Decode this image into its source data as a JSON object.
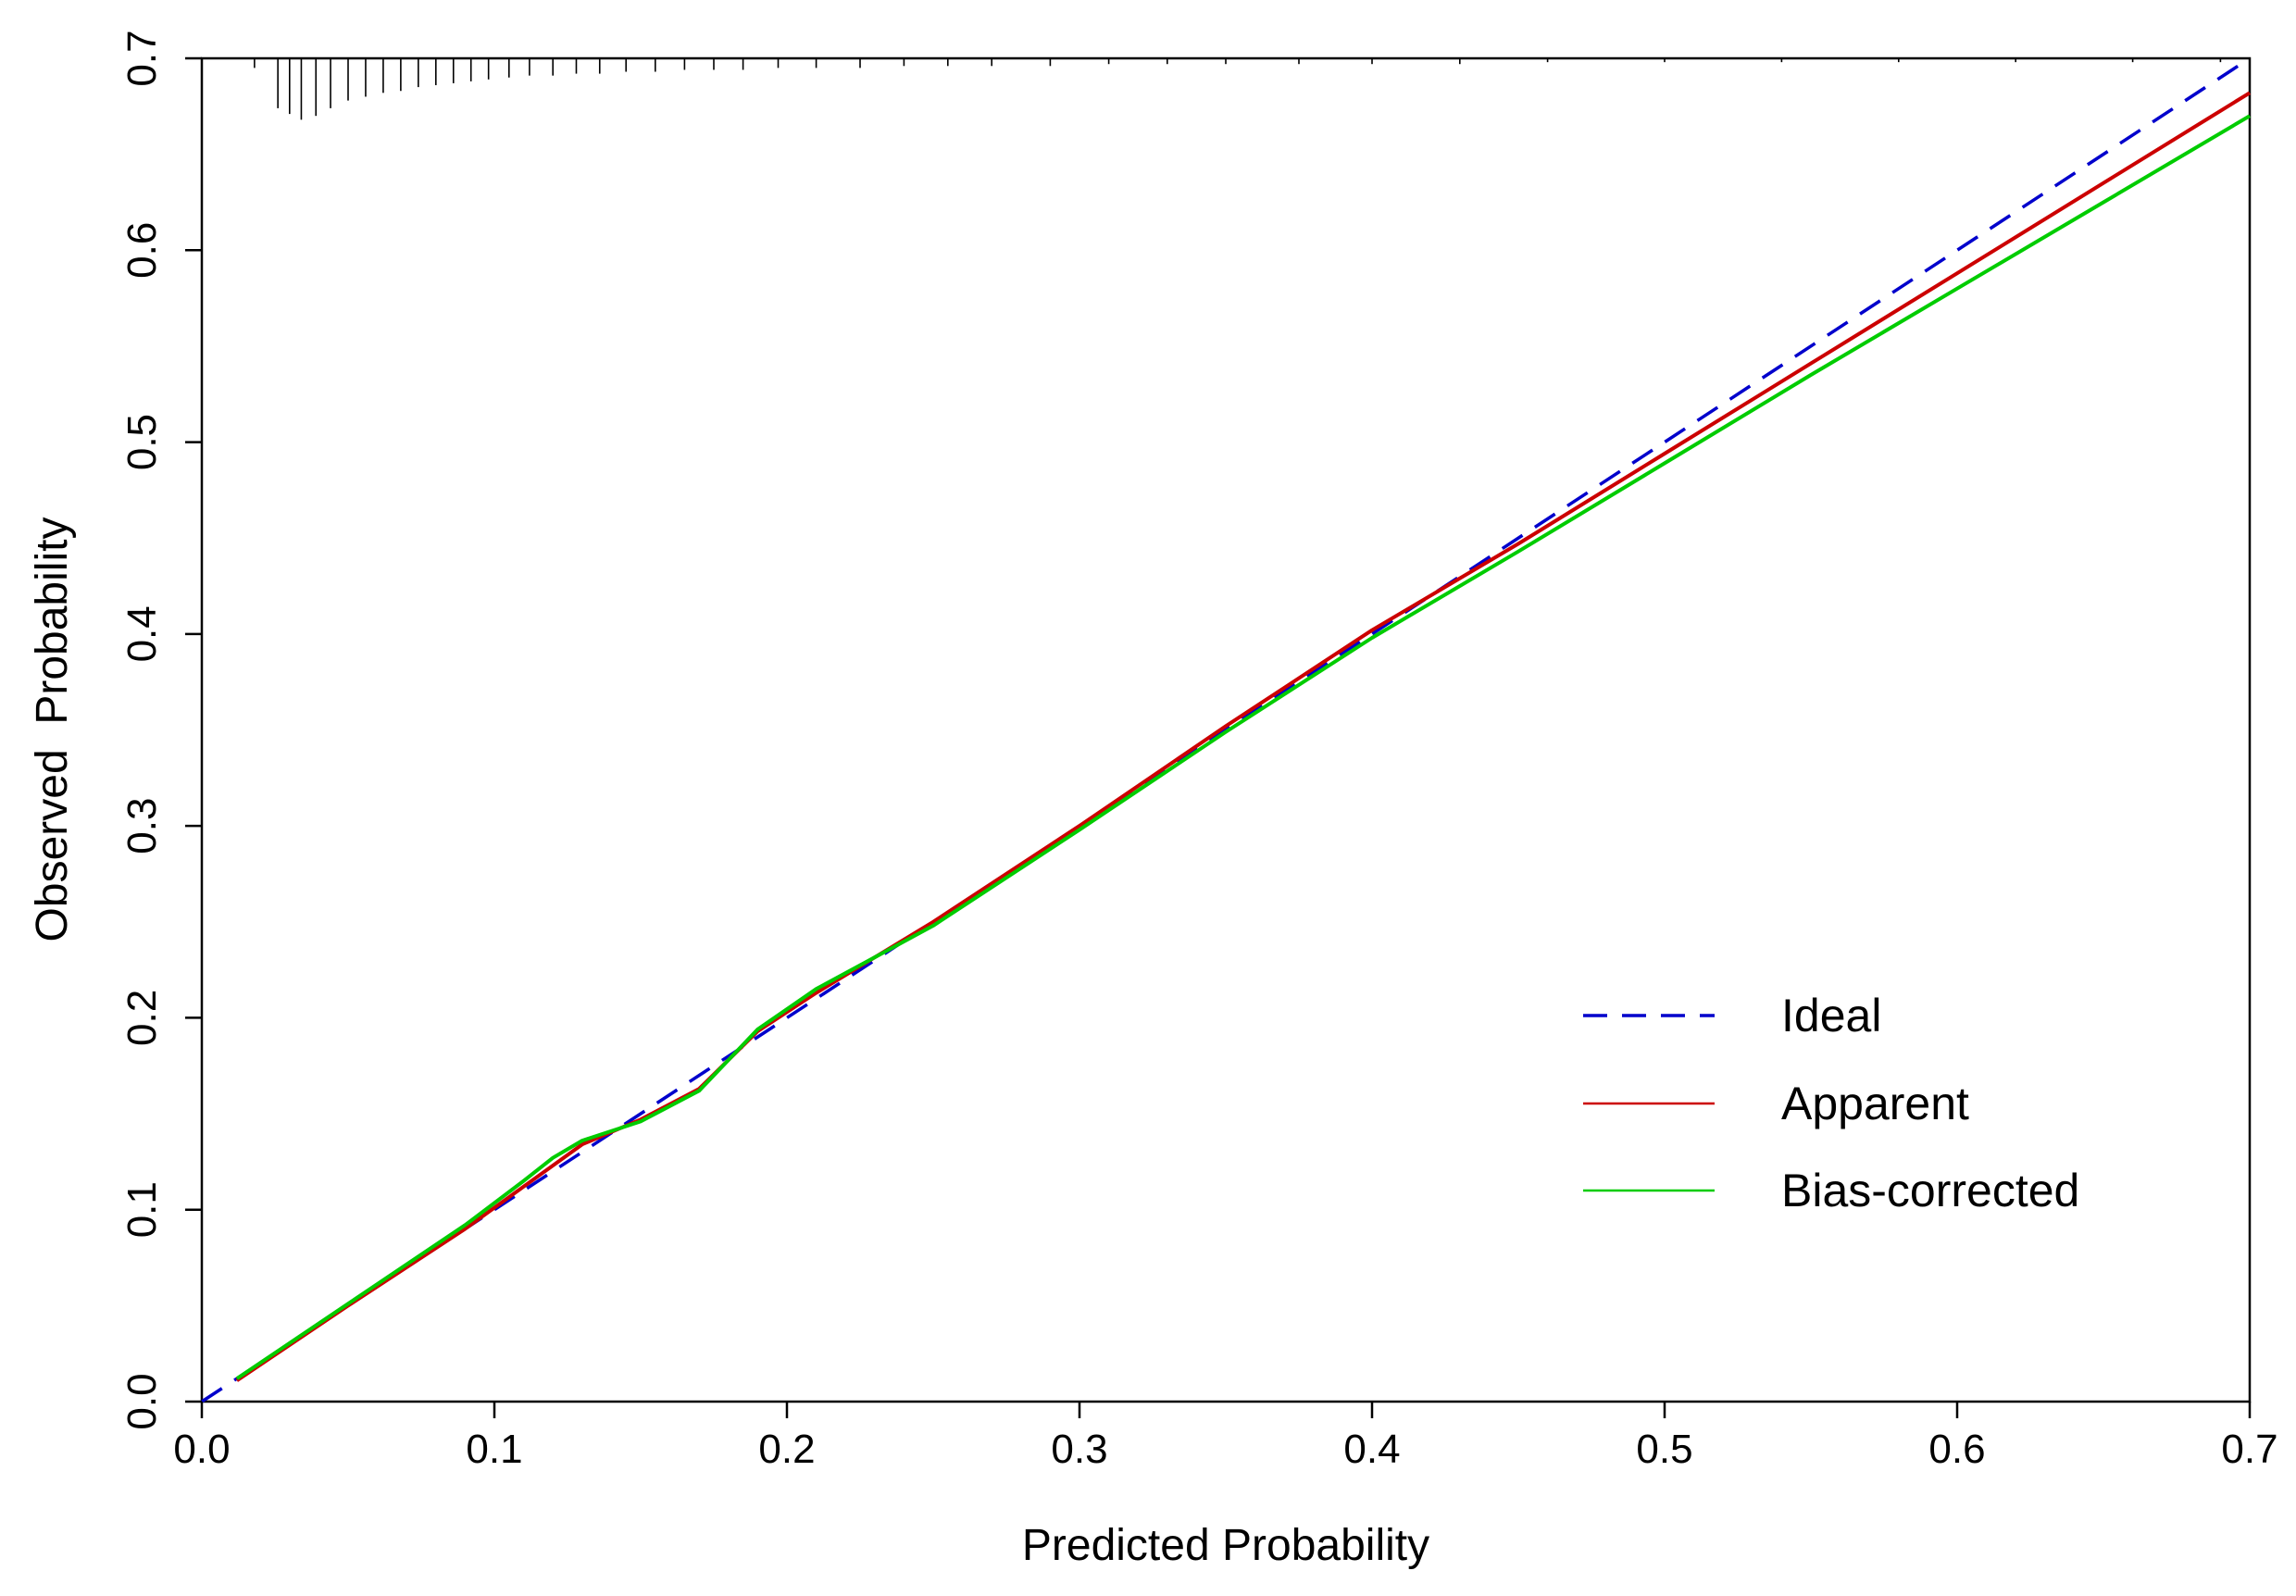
{
  "chart_data": {
    "type": "line",
    "title": "",
    "xlabel": "Predicted Probability",
    "ylabel": "Observed  Probability",
    "xlim": [
      0.0,
      0.7
    ],
    "ylim": [
      0.0,
      0.7
    ],
    "x_ticks": [
      "0.0",
      "0.1",
      "0.2",
      "0.3",
      "0.4",
      "0.5",
      "0.6",
      "0.7"
    ],
    "y_ticks": [
      "0.0",
      "0.1",
      "0.2",
      "0.3",
      "0.4",
      "0.5",
      "0.6",
      "0.7"
    ],
    "grid": false,
    "legend_position": "bottom-right",
    "series": [
      {
        "name": "Ideal",
        "color": "#0000cc",
        "style": "dashed",
        "x": [
          0.0,
          0.7
        ],
        "y": [
          0.0,
          0.7
        ]
      },
      {
        "name": "Apparent",
        "color": "#cc0000",
        "style": "solid",
        "x": [
          0.012,
          0.05,
          0.09,
          0.11,
          0.13,
          0.15,
          0.17,
          0.19,
          0.21,
          0.25,
          0.3,
          0.35,
          0.4,
          0.45,
          0.5,
          0.55,
          0.6,
          0.65,
          0.7
        ],
        "y": [
          0.011,
          0.05,
          0.09,
          0.112,
          0.134,
          0.147,
          0.163,
          0.193,
          0.213,
          0.25,
          0.3,
          0.352,
          0.402,
          0.447,
          0.494,
          0.541,
          0.588,
          0.635,
          0.682
        ]
      },
      {
        "name": "Bias-corrected",
        "color": "#00cc00",
        "style": "solid",
        "x": [
          0.012,
          0.05,
          0.09,
          0.11,
          0.12,
          0.13,
          0.15,
          0.17,
          0.19,
          0.21,
          0.25,
          0.3,
          0.35,
          0.4,
          0.45,
          0.5,
          0.55,
          0.6,
          0.65,
          0.7
        ],
        "y": [
          0.012,
          0.051,
          0.092,
          0.115,
          0.127,
          0.136,
          0.146,
          0.162,
          0.194,
          0.215,
          0.248,
          0.298,
          0.349,
          0.398,
          0.443,
          0.489,
          0.535,
          0.58,
          0.625,
          0.67
        ]
      }
    ],
    "rug": {
      "x": [
        0.018,
        0.026,
        0.03,
        0.034,
        0.039,
        0.044,
        0.05,
        0.056,
        0.062,
        0.068,
        0.074,
        0.08,
        0.086,
        0.092,
        0.098,
        0.105,
        0.112,
        0.12,
        0.128,
        0.136,
        0.145,
        0.155,
        0.165,
        0.175,
        0.185,
        0.197,
        0.21,
        0.225,
        0.24,
        0.255,
        0.27,
        0.29,
        0.31,
        0.33,
        0.35,
        0.375,
        0.4,
        0.43,
        0.46,
        0.5,
        0.54,
        0.58,
        0.62,
        0.66,
        0.69
      ],
      "h": [
        0.005,
        0.026,
        0.029,
        0.032,
        0.03,
        0.026,
        0.022,
        0.02,
        0.018,
        0.017,
        0.015,
        0.014,
        0.013,
        0.012,
        0.011,
        0.01,
        0.009,
        0.009,
        0.008,
        0.008,
        0.007,
        0.007,
        0.006,
        0.006,
        0.006,
        0.005,
        0.005,
        0.005,
        0.004,
        0.004,
        0.004,
        0.004,
        0.003,
        0.003,
        0.003,
        0.003,
        0.003,
        0.003,
        0.002,
        0.002,
        0.002,
        0.002,
        0.002,
        0.002,
        0.002
      ]
    }
  }
}
